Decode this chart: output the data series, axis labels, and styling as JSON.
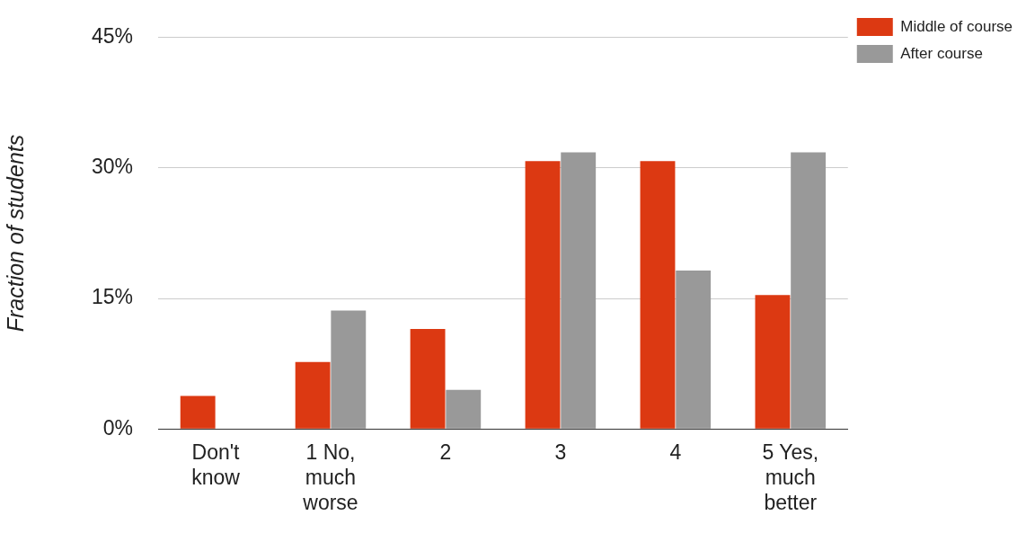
{
  "chart_data": {
    "type": "bar",
    "ylabel": "Fraction of students",
    "categories": [
      "Don't know",
      "1 No, much worse",
      "2",
      "3",
      "4",
      "5 Yes, much better"
    ],
    "series": [
      {
        "name": "Middle of course",
        "color": "#dc3912",
        "values": [
          3.8,
          7.7,
          11.5,
          30.8,
          30.8,
          15.4
        ]
      },
      {
        "name": "After course",
        "color": "#999999",
        "values": [
          0,
          13.6,
          4.5,
          31.8,
          18.2,
          31.8
        ]
      }
    ],
    "ylim": [
      0,
      45
    ],
    "yticks": [
      {
        "value": 0,
        "label": "0%"
      },
      {
        "value": 15,
        "label": "15%"
      },
      {
        "value": 30,
        "label": "30%"
      },
      {
        "value": 45,
        "label": "45%"
      }
    ],
    "grid": "y",
    "legend": "top right"
  }
}
